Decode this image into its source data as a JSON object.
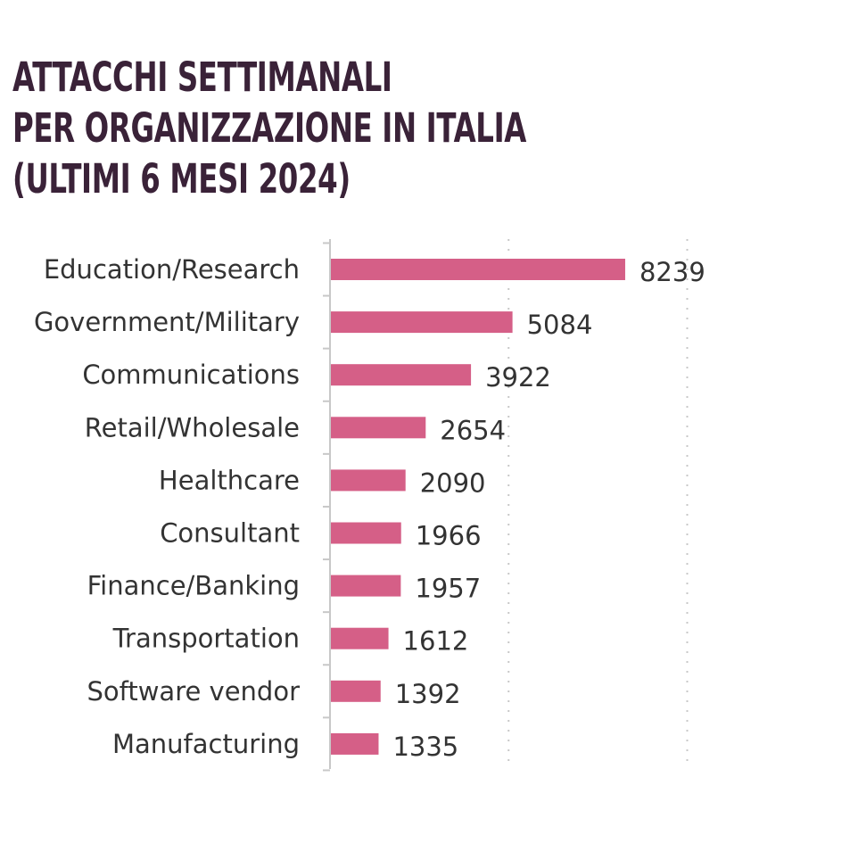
{
  "title_lines": [
    "ATTACCHI SETTIMANALI",
    "PER ORGANIZZAZIONE IN ITALIA",
    "(ULTIMI 6 MESI 2024)"
  ],
  "chart_data": {
    "type": "bar",
    "orientation": "horizontal",
    "title": "ATTACCHI SETTIMANALI PER ORGANIZZAZIONE IN ITALIA (ULTIMI 6 MESI 2024)",
    "categories": [
      "Education/Research",
      "Government/Military",
      "Communications",
      "Retail/Wholesale",
      "Healthcare",
      "Consultant",
      "Finance/Banking",
      "Transportation",
      "Software vendor",
      "Manufacturing"
    ],
    "values": [
      8239,
      5084,
      3922,
      2654,
      2090,
      1966,
      1957,
      1612,
      1392,
      1335
    ],
    "xlim": [
      0,
      10000
    ],
    "grid": "vertical dotted",
    "legend": "none",
    "colors": {
      "bar": "#d55f87",
      "axis": "#c8c8c8",
      "grid": "#c8c8c8",
      "title": "#3a2238",
      "text": "#333333"
    }
  }
}
